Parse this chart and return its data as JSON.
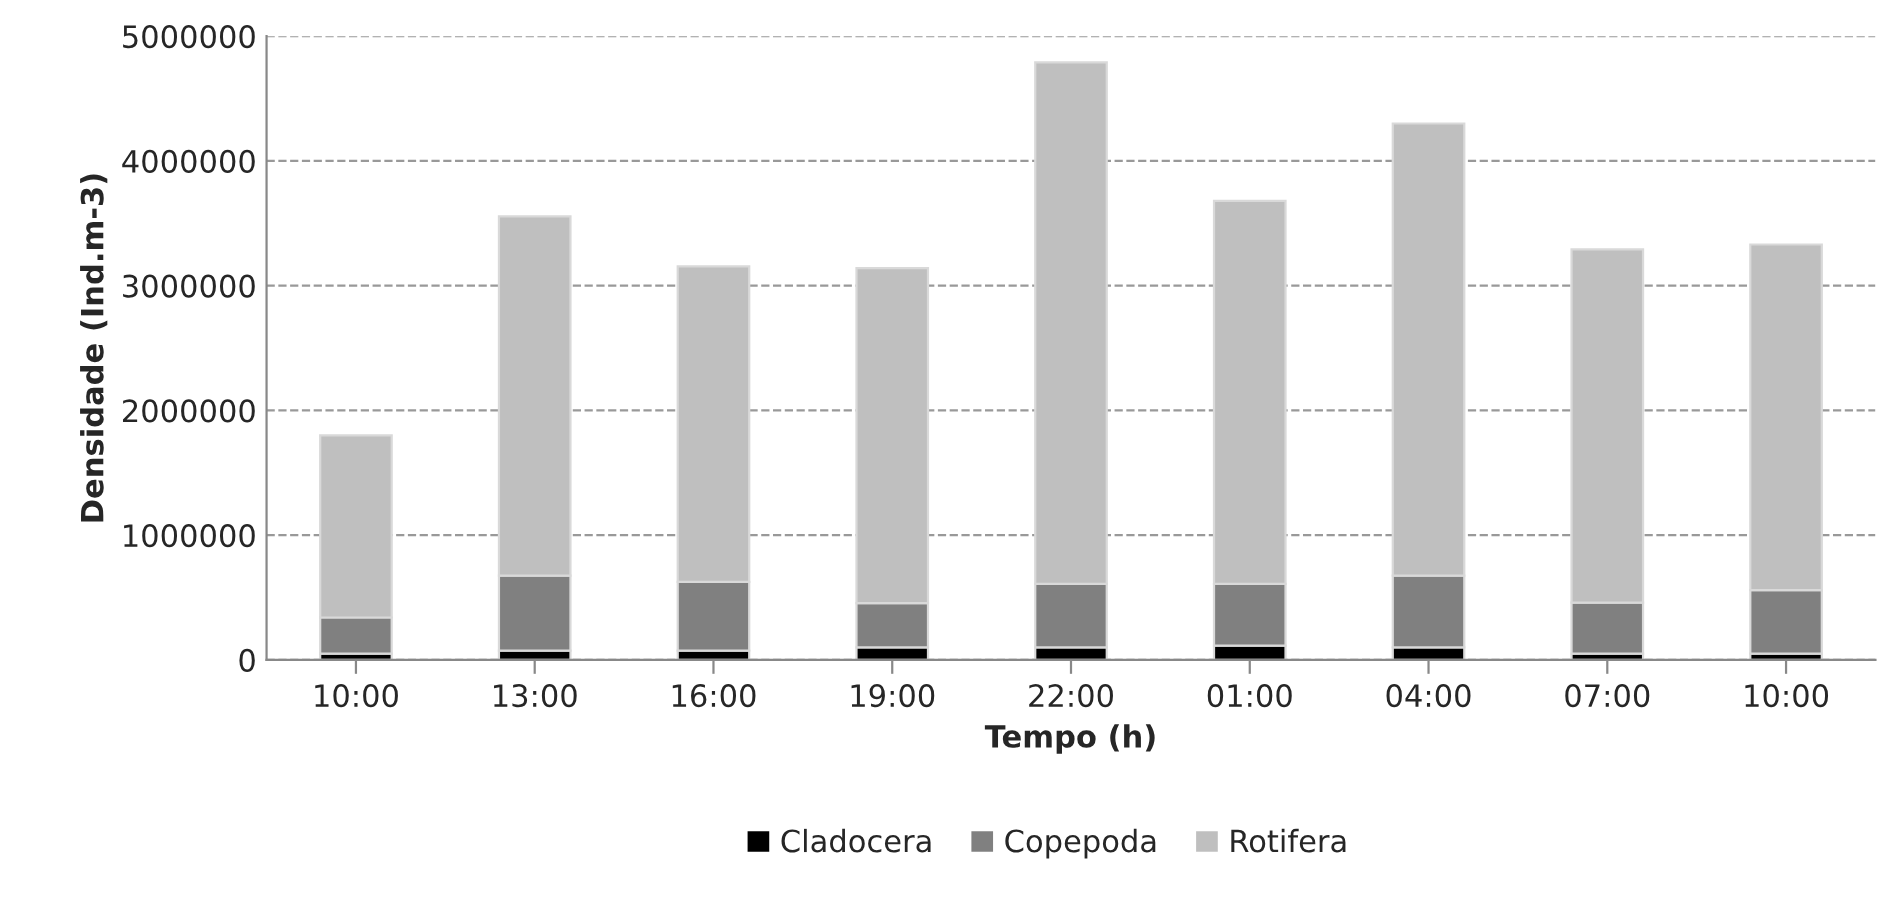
{
  "chart_data": {
    "type": "bar",
    "stacked": true,
    "xlabel": "Tempo (h)",
    "ylabel": "Densidade (Ind.m-3)",
    "categories": [
      "10:00",
      "13:00",
      "16:00",
      "19:00",
      "22:00",
      "01:00",
      "04:00",
      "07:00",
      "10:00"
    ],
    "series": [
      {
        "name": "Cladocera",
        "color": "#000000",
        "values": [
          50000,
          75000,
          75000,
          100000,
          100000,
          115000,
          100000,
          50000,
          50000
        ]
      },
      {
        "name": "Copepoda",
        "color": "#808080",
        "values": [
          290000,
          600000,
          550000,
          355000,
          510000,
          495000,
          575000,
          410000,
          510000
        ]
      },
      {
        "name": "Rotifera",
        "color": "#bfbfbf",
        "values": [
          1460000,
          2880000,
          2530000,
          2685000,
          4180000,
          3070000,
          3625000,
          2830000,
          2770000
        ]
      }
    ],
    "ylim": [
      0,
      5000000
    ],
    "yticks": [
      0,
      1000000,
      2000000,
      3000000,
      4000000,
      5000000
    ],
    "grid": "y",
    "legend": "bottom"
  }
}
